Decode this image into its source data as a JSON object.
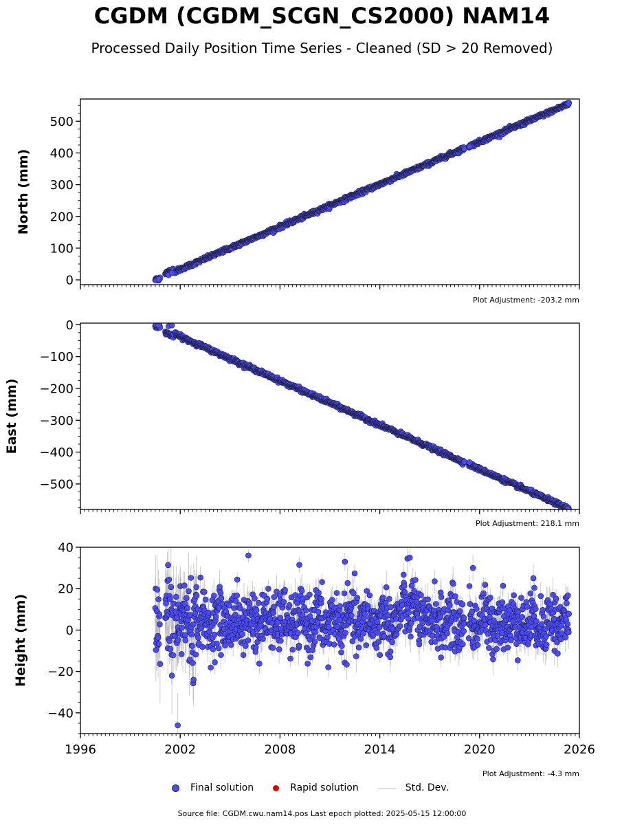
{
  "title": "CGDM (CGDM_SCGN_CS2000) NAM14",
  "subtitle": "Processed Daily Position Time Series - Cleaned (SD > 20 Removed)",
  "colors": {
    "final": "#4a4aff",
    "rapid": "#dd0000",
    "std": "#9a9a9a",
    "edge": "#222244"
  },
  "x_axis": {
    "ticks": [
      1996,
      2002,
      2008,
      2014,
      2020,
      2026
    ],
    "tick_labels": [
      "1996",
      "2002",
      "2008",
      "2014",
      "2020",
      "2026"
    ],
    "range": [
      1996,
      2026
    ]
  },
  "chart_data": [
    {
      "type": "scatter",
      "name": "north",
      "ylabel": "North (mm)",
      "ylim": [
        -15,
        570
      ],
      "yticks": [
        0,
        100,
        200,
        300,
        400,
        500
      ],
      "ytick_labels": [
        "0",
        "100",
        "200",
        "300",
        "400",
        "500"
      ],
      "adjustment": "Plot Adjustment: -203.2 mm",
      "trend": {
        "x_start": 2000.5,
        "x_end": 2025.37,
        "y_start": 0,
        "y_end": 555
      },
      "segments": [
        [
          2000.5,
          2000.8
        ],
        [
          2001.1,
          2001.6
        ],
        [
          2001.7,
          2019.1
        ],
        [
          2019.35,
          2025.37
        ]
      ],
      "noise_sd": 3,
      "points_highlight": [
        [
          2000.55,
          -2
        ],
        [
          2000.7,
          2
        ],
        [
          2001.3,
          15
        ],
        [
          2001.5,
          22
        ],
        [
          2019.4,
          420
        ],
        [
          2025.35,
          556
        ]
      ]
    },
    {
      "type": "scatter",
      "name": "east",
      "ylabel": "East (mm)",
      "ylim": [
        -580,
        5
      ],
      "yticks": [
        0,
        -100,
        -200,
        -300,
        -400,
        -500
      ],
      "ytick_labels": [
        "0",
        "−100",
        "−200",
        "−300",
        "−400",
        "−500"
      ],
      "adjustment": "Plot Adjustment: 218.1 mm",
      "trend": {
        "x_start": 2000.5,
        "x_end": 2025.37,
        "y_start": -2,
        "y_end": -578
      },
      "segments": [
        [
          2000.5,
          2000.8
        ],
        [
          2001.1,
          2001.6
        ],
        [
          2001.7,
          2019.1
        ],
        [
          2019.35,
          2025.37
        ]
      ],
      "noise_sd": 3,
      "points_highlight": [
        [
          2000.55,
          0
        ],
        [
          2000.7,
          -2
        ],
        [
          2001.3,
          -5
        ],
        [
          2001.5,
          -2
        ],
        [
          2019.4,
          -432
        ],
        [
          2025.3,
          -578
        ]
      ]
    },
    {
      "type": "scatter",
      "name": "height",
      "ylabel": "Height (mm)",
      "ylim": [
        -50,
        40
      ],
      "yticks": [
        40,
        20,
        0,
        -20,
        -40
      ],
      "ytick_labels": [
        "40",
        "20",
        "0",
        "−20",
        "−40"
      ],
      "adjustment": "Plot Adjustment: -4.3 mm",
      "trend": {
        "x_start": 2000.5,
        "x_end": 2025.37,
        "y_start": 4,
        "y_end": 4
      },
      "segments": [
        [
          2000.5,
          2000.8
        ],
        [
          2001.1,
          2001.6
        ],
        [
          2001.7,
          2019.1
        ],
        [
          2019.35,
          2025.37
        ]
      ],
      "noise_sd": 7,
      "points_highlight": [
        [
          2001.85,
          -46
        ],
        [
          2002.8,
          -24
        ],
        [
          2006.1,
          36
        ],
        [
          2011.9,
          33
        ],
        [
          2015.8,
          35
        ],
        [
          2019.6,
          30
        ],
        [
          2010.9,
          -18
        ],
        [
          2001.5,
          -22
        ]
      ]
    }
  ],
  "legend": {
    "final": "Final solution",
    "rapid": "Rapid solution",
    "std": "Std. Dev."
  },
  "source": "Source file: CGDM.cwu.nam14.pos  Last epoch plotted: 2025-05-15 12:00:00"
}
